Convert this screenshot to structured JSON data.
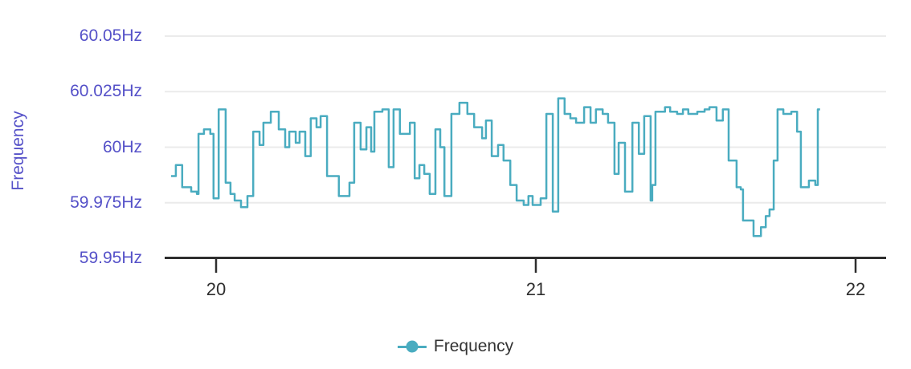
{
  "chart": {
    "y_axis": {
      "title": "Frequency",
      "tick_labels": [
        "60.05Hz",
        "60.025Hz",
        "60Hz",
        "59.975Hz",
        "59.95Hz"
      ],
      "tick_values": [
        60.05,
        60.025,
        60.0,
        59.975,
        59.95
      ]
    },
    "x_axis": {
      "tick_labels": [
        "20",
        "21",
        "22"
      ],
      "tick_values": [
        20,
        21,
        22
      ]
    },
    "legend": {
      "label": "Frequency"
    },
    "colors": {
      "line": "#4aacc0",
      "axis_label_text": "#5551c8",
      "grid_line": "#ebebeb",
      "axis_line": "#2e2e2e",
      "x_tick_text": "#2e2e2e",
      "legend_text": "#333333"
    }
  },
  "chart_data": {
    "type": "line",
    "line_style": "step-after",
    "title": "",
    "xlabel": "",
    "ylabel": "Frequency",
    "legend_position": "bottom",
    "grid": true,
    "xlim": [
      19.84,
      22.1
    ],
    "ylim": [
      59.95,
      60.05
    ],
    "xticks": [
      20,
      21,
      22
    ],
    "yticks": [
      60.05,
      60.025,
      60.0,
      59.975,
      59.95
    ],
    "series": [
      {
        "name": "Frequency",
        "unit": "Hz",
        "x": [
          19.859,
          19.874,
          19.894,
          19.922,
          19.94,
          19.945,
          19.962,
          19.982,
          19.992,
          20.008,
          20.03,
          20.045,
          20.058,
          20.078,
          20.098,
          20.116,
          20.136,
          20.148,
          20.171,
          20.196,
          20.216,
          20.229,
          20.249,
          20.261,
          20.279,
          20.296,
          20.314,
          20.327,
          20.347,
          20.384,
          20.417,
          20.432,
          20.452,
          20.47,
          20.485,
          20.495,
          20.52,
          20.54,
          20.555,
          20.575,
          20.606,
          20.621,
          20.636,
          20.651,
          20.668,
          20.686,
          20.701,
          20.714,
          20.736,
          20.761,
          20.786,
          20.807,
          20.832,
          20.844,
          20.862,
          20.882,
          20.899,
          20.92,
          20.94,
          20.962,
          20.977,
          20.99,
          21.015,
          21.033,
          21.053,
          21.07,
          21.09,
          21.108,
          21.126,
          21.151,
          21.171,
          21.188,
          21.209,
          21.226,
          21.246,
          21.259,
          21.279,
          21.302,
          21.322,
          21.339,
          21.359,
          21.364,
          21.374,
          21.404,
          21.42,
          21.442,
          21.46,
          21.477,
          21.505,
          21.528,
          21.543,
          21.565,
          21.585,
          21.603,
          21.628,
          21.641,
          21.648,
          21.681,
          21.704,
          21.719,
          21.731,
          21.744,
          21.756,
          21.774,
          21.799,
          21.817,
          21.829,
          21.854,
          21.874,
          21.882,
          21.889
        ],
        "y": [
          59.987,
          59.992,
          59.982,
          59.98,
          59.979,
          60.006,
          60.008,
          60.006,
          59.977,
          60.017,
          59.984,
          59.979,
          59.976,
          59.973,
          59.978,
          60.007,
          60.001,
          60.011,
          60.016,
          60.008,
          60.0,
          60.007,
          60.002,
          60.007,
          59.996,
          60.013,
          60.009,
          60.014,
          59.987,
          59.978,
          59.984,
          60.011,
          59.999,
          60.009,
          59.998,
          60.016,
          60.017,
          59.991,
          60.017,
          60.006,
          60.011,
          59.986,
          59.992,
          59.988,
          59.979,
          60.008,
          60.0,
          59.978,
          60.015,
          60.02,
          60.015,
          60.009,
          60.004,
          60.012,
          59.996,
          60.001,
          59.994,
          59.983,
          59.976,
          59.974,
          59.978,
          59.974,
          59.977,
          60.015,
          59.971,
          60.022,
          60.015,
          60.013,
          60.011,
          60.018,
          60.011,
          60.017,
          60.015,
          60.011,
          59.988,
          60.002,
          59.98,
          60.011,
          59.997,
          60.014,
          59.976,
          59.983,
          60.016,
          60.018,
          60.016,
          60.015,
          60.017,
          60.015,
          60.016,
          60.017,
          60.018,
          60.012,
          60.017,
          59.994,
          59.982,
          59.981,
          59.967,
          59.96,
          59.964,
          59.969,
          59.972,
          59.994,
          60.017,
          60.015,
          60.016,
          60.007,
          59.982,
          59.985,
          59.983,
          60.017,
          60.017
        ]
      }
    ]
  }
}
